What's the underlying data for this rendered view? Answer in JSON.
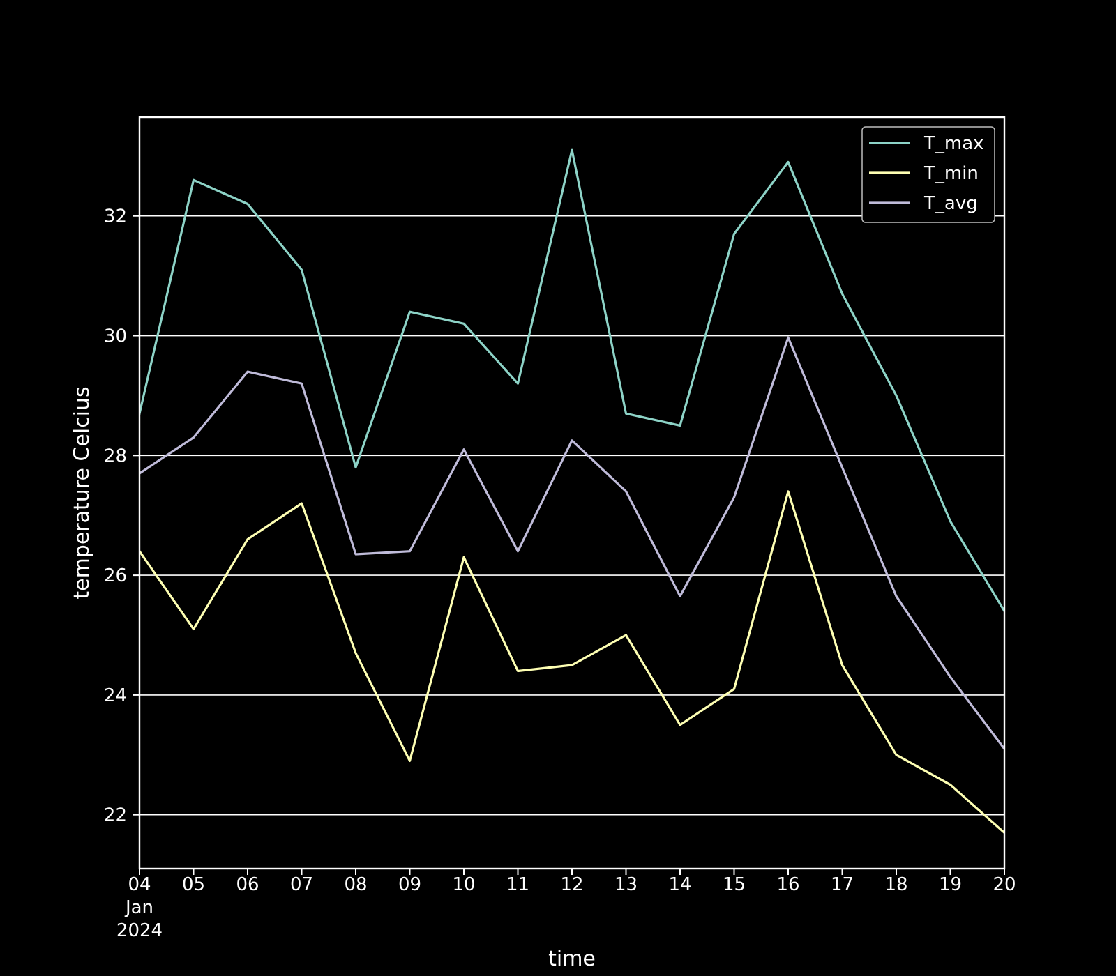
{
  "chart_data": {
    "type": "line",
    "title": "",
    "xlabel": "time",
    "ylabel": "temperature Celcius",
    "x": [
      "04",
      "05",
      "06",
      "07",
      "08",
      "09",
      "10",
      "11",
      "12",
      "13",
      "14",
      "15",
      "16",
      "17",
      "18",
      "19",
      "20"
    ],
    "x_sublabel": {
      "month": "Jan",
      "year": "2024"
    },
    "ylim": [
      21.1,
      33.65
    ],
    "yticks": [
      22,
      24,
      26,
      28,
      30,
      32
    ],
    "ytick_labels": [
      "22",
      "24",
      "26",
      "28",
      "30",
      "32"
    ],
    "grid": "horizontal",
    "legend_position": "top-right",
    "series": [
      {
        "name": "T_max",
        "color": "#8dd3c7",
        "values": [
          28.7,
          32.6,
          32.2,
          31.1,
          27.8,
          30.4,
          30.2,
          29.2,
          33.1,
          28.7,
          28.5,
          31.7,
          32.9,
          30.7,
          29.0,
          26.9,
          25.4
        ]
      },
      {
        "name": "T_min",
        "color": "#feffb3",
        "values": [
          26.4,
          25.1,
          26.6,
          27.2,
          24.7,
          22.9,
          26.3,
          24.4,
          24.5,
          25.0,
          23.5,
          24.1,
          27.4,
          24.5,
          23.0,
          22.5,
          21.7
        ]
      },
      {
        "name": "T_avg",
        "color": "#bfbbd9",
        "values": [
          27.7,
          28.3,
          29.4,
          29.2,
          26.35,
          26.4,
          28.1,
          26.4,
          28.25,
          27.4,
          25.65,
          27.3,
          29.97,
          27.8,
          25.65,
          24.3,
          23.1
        ]
      }
    ]
  }
}
